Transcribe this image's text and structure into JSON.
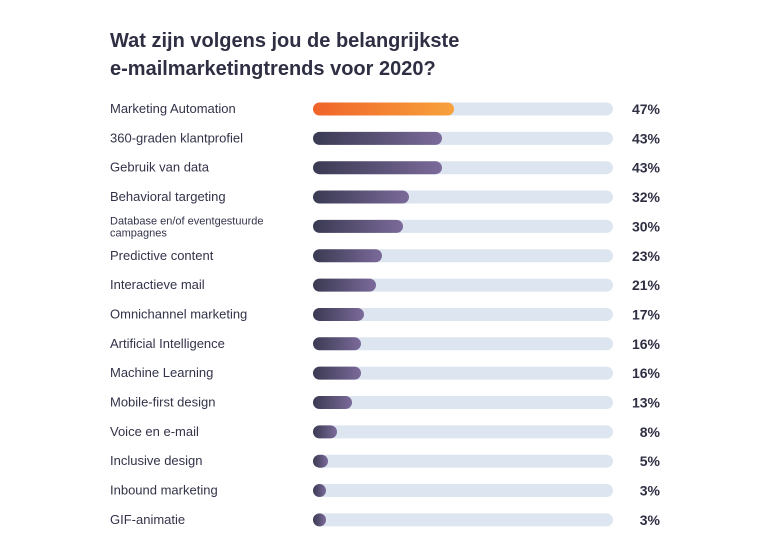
{
  "colors": {
    "track": "#dde6f0",
    "bar_dark": "#3a3a52",
    "bar_light": "#7b6a9a",
    "highlight_dark": "#f0632a",
    "highlight_light": "#f7a23c",
    "highlight_text": "#f39431",
    "text": "#33334a"
  },
  "chart_data": {
    "type": "bar",
    "orientation": "horizontal",
    "title_lines": [
      "Wat zijn volgens jou de belangrijkste",
      "e-mailmarketingtrends voor 2020?"
    ],
    "xlim": [
      0,
      100
    ],
    "value_suffix": "%",
    "highlight_index": 0,
    "categories": [
      "Marketing Automation",
      "360-graden klantprofiel",
      "Gebruik van data",
      "Behavioral targeting",
      "Database en/of eventgestuurde campagnes",
      "Predictive content",
      "Interactieve mail",
      "Omnichannel marketing",
      "Artificial Intelligence",
      "Machine Learning",
      "Mobile-first design",
      "Voice en e-mail",
      "Inclusive design",
      "Inbound marketing",
      "GIF-animatie"
    ],
    "values": [
      47,
      43,
      43,
      32,
      30,
      23,
      21,
      17,
      16,
      16,
      13,
      8,
      5,
      3,
      3
    ]
  }
}
